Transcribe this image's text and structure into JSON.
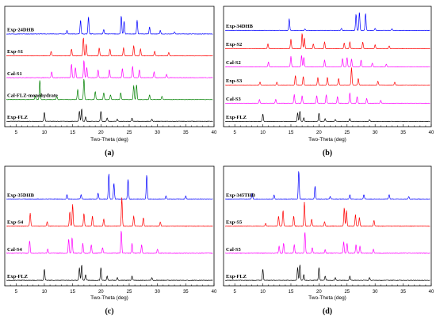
{
  "colors": {
    "blue": "#0000ff",
    "red": "#ff0000",
    "magenta": "#ff00ff",
    "green": "#008000",
    "black": "#000000"
  },
  "chart_data": [
    {
      "type": "line",
      "panel_label": "(a)",
      "xlabel": "Two-Theta (deg)",
      "xlim": [
        3,
        40
      ],
      "xticks": [
        5,
        10,
        15,
        20,
        25,
        30,
        35,
        40
      ],
      "series": [
        {
          "name": "Exp-24DHB",
          "color": "#0000ff",
          "peaks": [
            [
              16.4,
              0.6
            ],
            [
              17.8,
              0.75
            ],
            [
              23.6,
              0.8
            ],
            [
              24.1,
              0.55
            ],
            [
              26.4,
              0.6
            ],
            [
              28.6,
              0.3
            ],
            [
              14.0,
              0.15
            ],
            [
              20.5,
              0.2
            ],
            [
              30.5,
              0.15
            ],
            [
              33.0,
              0.1
            ]
          ]
        },
        {
          "name": "Exp-S1",
          "color": "#ff0000",
          "peaks": [
            [
              16.9,
              0.8
            ],
            [
              17.4,
              0.5
            ],
            [
              14.8,
              0.3
            ],
            [
              19.7,
              0.35
            ],
            [
              21.6,
              0.3
            ],
            [
              24.0,
              0.35
            ],
            [
              25.8,
              0.45
            ],
            [
              27.0,
              0.3
            ],
            [
              11.2,
              0.2
            ],
            [
              29.5,
              0.2
            ],
            [
              32.0,
              0.15
            ]
          ]
        },
        {
          "name": "Cal-S1",
          "color": "#ff00ff",
          "peaks": [
            [
              14.8,
              0.6
            ],
            [
              15.5,
              0.45
            ],
            [
              17.0,
              0.75
            ],
            [
              17.5,
              0.45
            ],
            [
              19.5,
              0.35
            ],
            [
              21.5,
              0.35
            ],
            [
              23.8,
              0.4
            ],
            [
              25.6,
              0.5
            ],
            [
              26.8,
              0.35
            ],
            [
              11.3,
              0.25
            ],
            [
              29.4,
              0.25
            ],
            [
              31.6,
              0.15
            ]
          ]
        },
        {
          "name": "Cal-FLZ-monohydrate",
          "color": "#008000",
          "peaks": [
            [
              9.2,
              0.85
            ],
            [
              17.0,
              0.9
            ],
            [
              15.9,
              0.45
            ],
            [
              19.0,
              0.35
            ],
            [
              20.5,
              0.3
            ],
            [
              25.8,
              0.6
            ],
            [
              26.3,
              0.65
            ],
            [
              23.5,
              0.3
            ],
            [
              21.7,
              0.2
            ],
            [
              28.6,
              0.2
            ],
            [
              30.8,
              0.15
            ],
            [
              12.2,
              0.15
            ],
            [
              8.4,
              0.15
            ]
          ]
        },
        {
          "name": "Exp-FLZ",
          "color": "#000000",
          "peaks": [
            [
              10.0,
              0.4
            ],
            [
              16.2,
              0.45
            ],
            [
              16.6,
              0.55
            ],
            [
              20.0,
              0.45
            ],
            [
              25.5,
              0.15
            ],
            [
              21.1,
              0.15
            ],
            [
              29.0,
              0.1
            ],
            [
              17.3,
              0.2
            ],
            [
              22.9,
              0.1
            ]
          ]
        }
      ]
    },
    {
      "type": "line",
      "panel_label": "(b)",
      "xlabel": "Two-Theta (deg)",
      "xlim": [
        3,
        40
      ],
      "xticks": [
        5,
        10,
        15,
        20,
        25,
        30,
        35,
        40
      ],
      "series": [
        {
          "name": "Exp-34DHB",
          "color": "#0000ff",
          "peaks": [
            [
              14.7,
              0.6
            ],
            [
              26.6,
              0.85
            ],
            [
              27.2,
              0.95
            ],
            [
              28.3,
              0.9
            ],
            [
              24.0,
              0.1
            ],
            [
              17.5,
              0.08
            ],
            [
              30.0,
              0.1
            ],
            [
              33.0,
              0.08
            ]
          ]
        },
        {
          "name": "Exp-S2",
          "color": "#ff0000",
          "peaks": [
            [
              15.0,
              0.5
            ],
            [
              17.0,
              0.8
            ],
            [
              17.4,
              0.55
            ],
            [
              10.9,
              0.25
            ],
            [
              21.0,
              0.35
            ],
            [
              24.5,
              0.3
            ],
            [
              25.5,
              0.35
            ],
            [
              27.8,
              0.35
            ],
            [
              30.0,
              0.2
            ],
            [
              32.5,
              0.15
            ],
            [
              19.0,
              0.25
            ]
          ]
        },
        {
          "name": "Cal-S2",
          "color": "#ff00ff",
          "peaks": [
            [
              15.0,
              0.55
            ],
            [
              16.9,
              0.6
            ],
            [
              17.3,
              0.5
            ],
            [
              11.0,
              0.25
            ],
            [
              21.0,
              0.35
            ],
            [
              24.2,
              0.45
            ],
            [
              25.0,
              0.5
            ],
            [
              25.8,
              0.4
            ],
            [
              27.5,
              0.35
            ],
            [
              29.5,
              0.2
            ],
            [
              32.0,
              0.15
            ]
          ]
        },
        {
          "name": "Exp-S3",
          "color": "#ff0000",
          "peaks": [
            [
              15.8,
              0.5
            ],
            [
              17.2,
              0.45
            ],
            [
              12.5,
              0.15
            ],
            [
              19.8,
              0.4
            ],
            [
              21.5,
              0.4
            ],
            [
              23.5,
              0.35
            ],
            [
              25.8,
              0.9
            ],
            [
              27.0,
              0.35
            ],
            [
              9.5,
              0.15
            ],
            [
              30.5,
              0.2
            ],
            [
              33.5,
              0.15
            ]
          ]
        },
        {
          "name": "Cal-S3",
          "color": "#ff00ff",
          "peaks": [
            [
              15.6,
              0.45
            ],
            [
              17.0,
              0.4
            ],
            [
              9.4,
              0.2
            ],
            [
              12.3,
              0.2
            ],
            [
              19.6,
              0.4
            ],
            [
              21.3,
              0.45
            ],
            [
              23.3,
              0.35
            ],
            [
              25.5,
              0.55
            ],
            [
              26.8,
              0.35
            ],
            [
              28.5,
              0.25
            ],
            [
              31.0,
              0.15
            ]
          ]
        },
        {
          "name": "Exp-FLZ",
          "color": "#000000",
          "peaks": [
            [
              10.0,
              0.4
            ],
            [
              16.2,
              0.45
            ],
            [
              16.6,
              0.55
            ],
            [
              20.0,
              0.45
            ],
            [
              25.5,
              0.15
            ],
            [
              21.1,
              0.15
            ],
            [
              29.0,
              0.1
            ],
            [
              17.3,
              0.2
            ],
            [
              22.9,
              0.1
            ]
          ]
        }
      ]
    },
    {
      "type": "line",
      "panel_label": "(c)",
      "xlabel": "Two-Theta (deg)",
      "xlim": [
        3,
        40
      ],
      "xticks": [
        5,
        10,
        15,
        20,
        25,
        30,
        35,
        40
      ],
      "series": [
        {
          "name": "Exp-35DHB",
          "color": "#0000ff",
          "peaks": [
            [
              21.4,
              0.9
            ],
            [
              22.3,
              0.55
            ],
            [
              24.8,
              0.7
            ],
            [
              28.1,
              0.85
            ],
            [
              14.0,
              0.15
            ],
            [
              19.5,
              0.2
            ],
            [
              16.5,
              0.15
            ],
            [
              31.5,
              0.1
            ],
            [
              35.0,
              0.1
            ]
          ]
        },
        {
          "name": "Exp-S4",
          "color": "#ff0000",
          "peaks": [
            [
              7.5,
              0.45
            ],
            [
              14.5,
              0.5
            ],
            [
              15.0,
              0.75
            ],
            [
              17.0,
              0.45
            ],
            [
              18.5,
              0.35
            ],
            [
              23.7,
              1.0
            ],
            [
              25.8,
              0.35
            ],
            [
              27.5,
              0.3
            ],
            [
              10.5,
              0.15
            ],
            [
              20.5,
              0.25
            ],
            [
              30.5,
              0.15
            ]
          ]
        },
        {
          "name": "Cal-S4",
          "color": "#ff00ff",
          "peaks": [
            [
              7.4,
              0.45
            ],
            [
              14.3,
              0.5
            ],
            [
              14.9,
              0.55
            ],
            [
              16.8,
              0.35
            ],
            [
              18.3,
              0.3
            ],
            [
              23.6,
              0.8
            ],
            [
              25.5,
              0.35
            ],
            [
              27.2,
              0.3
            ],
            [
              10.6,
              0.15
            ],
            [
              20.3,
              0.2
            ],
            [
              30.0,
              0.15
            ]
          ]
        },
        {
          "name": "Exp-FLZ",
          "color": "#000000",
          "peaks": [
            [
              10.0,
              0.4
            ],
            [
              16.2,
              0.45
            ],
            [
              16.6,
              0.55
            ],
            [
              20.0,
              0.45
            ],
            [
              25.5,
              0.15
            ],
            [
              21.1,
              0.15
            ],
            [
              29.0,
              0.1
            ],
            [
              17.3,
              0.2
            ],
            [
              22.9,
              0.1
            ]
          ]
        }
      ]
    },
    {
      "type": "line",
      "panel_label": "(d)",
      "xlabel": "Two-Theta (deg)",
      "xlim": [
        3,
        40
      ],
      "xticks": [
        5,
        10,
        15,
        20,
        25,
        30,
        35,
        40
      ],
      "series": [
        {
          "name": "Exp-345THB",
          "color": "#0000ff",
          "peaks": [
            [
              8.1,
              0.2
            ],
            [
              12.0,
              0.15
            ],
            [
              16.4,
              1.0
            ],
            [
              19.3,
              0.45
            ],
            [
              25.5,
              0.15
            ],
            [
              28.0,
              0.15
            ],
            [
              32.5,
              0.15
            ],
            [
              22.0,
              0.08
            ],
            [
              36.0,
              0.08
            ]
          ]
        },
        {
          "name": "Exp-S5",
          "color": "#ff0000",
          "peaks": [
            [
              12.8,
              0.35
            ],
            [
              13.6,
              0.55
            ],
            [
              15.5,
              0.35
            ],
            [
              17.4,
              0.85
            ],
            [
              18.7,
              0.25
            ],
            [
              24.5,
              0.65
            ],
            [
              24.9,
              0.55
            ],
            [
              26.5,
              0.4
            ],
            [
              27.2,
              0.3
            ],
            [
              29.8,
              0.2
            ],
            [
              21.0,
              0.15
            ],
            [
              10.5,
              0.1
            ]
          ]
        },
        {
          "name": "Cal-S5",
          "color": "#ff00ff",
          "peaks": [
            [
              12.9,
              0.25
            ],
            [
              13.7,
              0.35
            ],
            [
              15.6,
              0.3
            ],
            [
              17.5,
              0.75
            ],
            [
              18.8,
              0.2
            ],
            [
              24.4,
              0.4
            ],
            [
              25.0,
              0.35
            ],
            [
              26.6,
              0.3
            ],
            [
              27.3,
              0.25
            ],
            [
              29.7,
              0.15
            ],
            [
              21.1,
              0.12
            ]
          ]
        },
        {
          "name": "Exp-FLZ",
          "color": "#000000",
          "peaks": [
            [
              10.0,
              0.4
            ],
            [
              16.2,
              0.45
            ],
            [
              16.6,
              0.55
            ],
            [
              20.0,
              0.45
            ],
            [
              25.5,
              0.15
            ],
            [
              21.1,
              0.15
            ],
            [
              29.0,
              0.1
            ],
            [
              17.3,
              0.2
            ],
            [
              22.9,
              0.1
            ]
          ]
        }
      ]
    }
  ]
}
